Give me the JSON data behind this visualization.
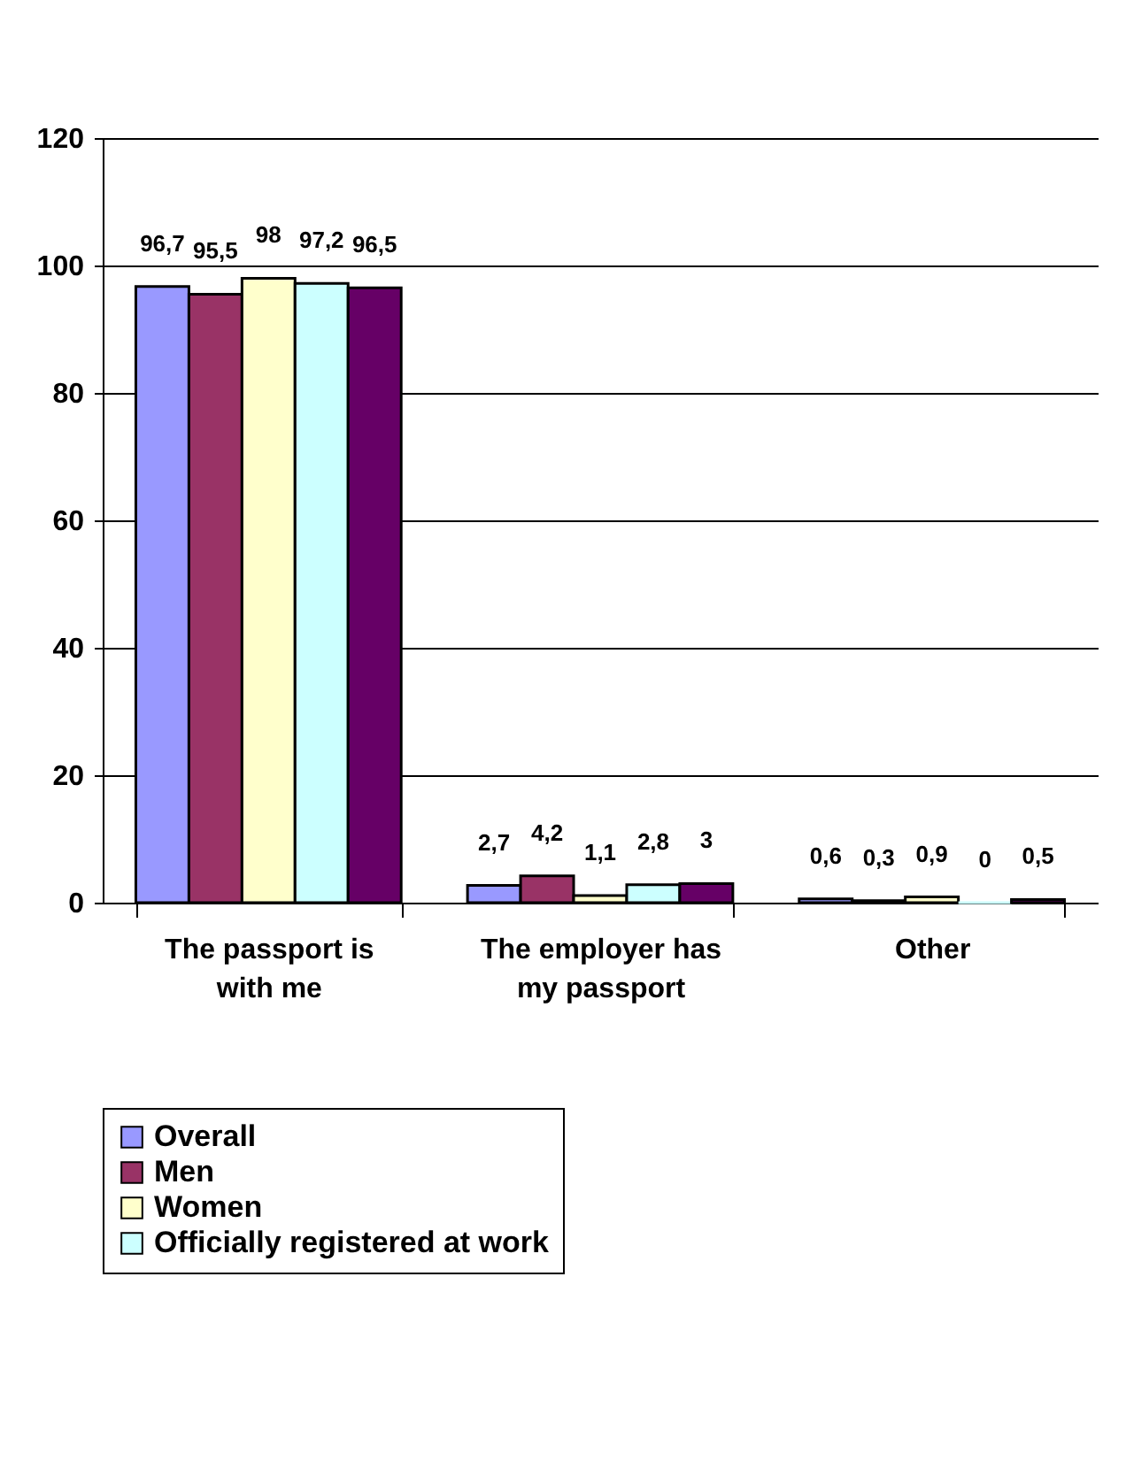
{
  "chart_data": {
    "type": "bar",
    "categories": [
      "The passport is with me",
      "The employer has my passport",
      "Other"
    ],
    "series": [
      {
        "name": "Overall",
        "color": "#9999ff",
        "values": [
          96.7,
          2.7,
          0.6
        ],
        "value_labels": [
          "96,7",
          "2,7",
          "0,6"
        ]
      },
      {
        "name": "Men",
        "color": "#993366",
        "values": [
          95.5,
          4.2,
          0.3
        ],
        "value_labels": [
          "95,5",
          "4,2",
          "0,3"
        ]
      },
      {
        "name": "Women",
        "color": "#ffffcc",
        "values": [
          98,
          1.1,
          0.9
        ],
        "value_labels": [
          "98",
          "1,1",
          "0,9"
        ]
      },
      {
        "name": "Officially registered at work",
        "color": "#ccffff",
        "values": [
          97.2,
          2.8,
          0
        ],
        "value_labels": [
          "97,2",
          "2,8",
          "0"
        ]
      },
      {
        "color": "#660066",
        "values": [
          96.5,
          3,
          0.5
        ],
        "value_labels": [
          "96,5",
          "3",
          "0,5"
        ]
      }
    ],
    "ylim": [
      0,
      120
    ],
    "yticks": [
      0,
      20,
      40,
      60,
      80,
      100,
      120
    ],
    "grid": "y",
    "legend": "bottom"
  }
}
